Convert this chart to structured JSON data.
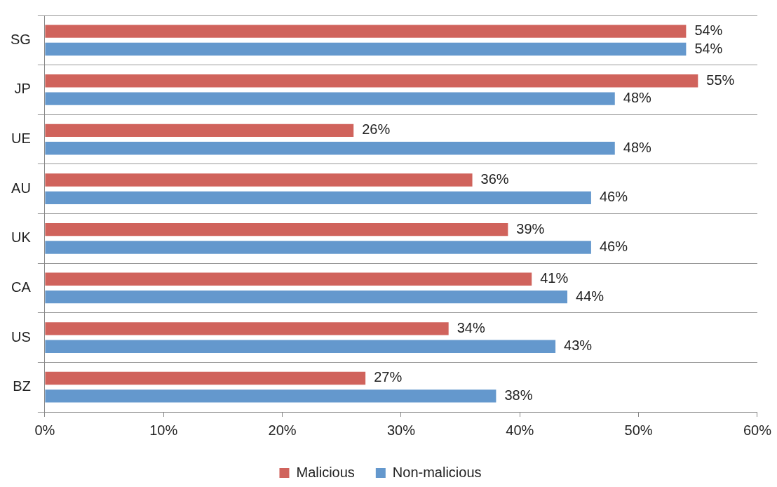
{
  "chart_data": {
    "type": "bar",
    "orientation": "horizontal",
    "categories": [
      "SG",
      "JP",
      "UE",
      "AU",
      "UK",
      "CA",
      "US",
      "BZ"
    ],
    "series": [
      {
        "name": "Malicious",
        "color": "#d0635c",
        "values": [
          54,
          55,
          26,
          36,
          39,
          41,
          34,
          27
        ],
        "value_labels": [
          "54%",
          "55%",
          "26%",
          "36%",
          "39%",
          "41%",
          "34%",
          "27%"
        ]
      },
      {
        "name": "Non-malicious",
        "color": "#6498cd",
        "values": [
          54,
          48,
          48,
          46,
          46,
          44,
          43,
          38
        ],
        "value_labels": [
          "54%",
          "48%",
          "48%",
          "46%",
          "46%",
          "44%",
          "43%",
          "38%"
        ]
      }
    ],
    "xlim": [
      0,
      60
    ],
    "xticks": [
      {
        "value": 0,
        "label": "0%"
      },
      {
        "value": 10,
        "label": "10%"
      },
      {
        "value": 20,
        "label": "20%"
      },
      {
        "value": 30,
        "label": "30%"
      },
      {
        "value": 40,
        "label": "40%"
      },
      {
        "value": 50,
        "label": "50%"
      },
      {
        "value": 60,
        "label": "60%"
      }
    ],
    "grid": "y",
    "legend": "bottom"
  }
}
